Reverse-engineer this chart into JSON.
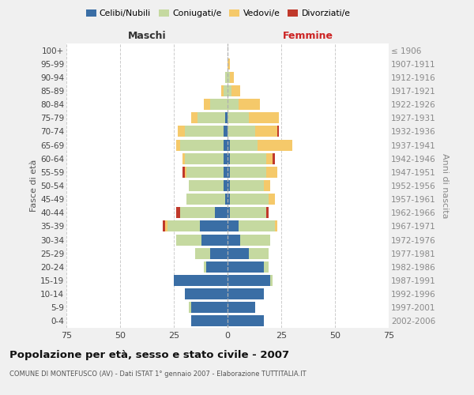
{
  "age_groups": [
    "0-4",
    "5-9",
    "10-14",
    "15-19",
    "20-24",
    "25-29",
    "30-34",
    "35-39",
    "40-44",
    "45-49",
    "50-54",
    "55-59",
    "60-64",
    "65-69",
    "70-74",
    "75-79",
    "80-84",
    "85-89",
    "90-94",
    "95-99",
    "100+"
  ],
  "birth_years": [
    "2002-2006",
    "1997-2001",
    "1992-1996",
    "1987-1991",
    "1982-1986",
    "1977-1981",
    "1972-1976",
    "1967-1971",
    "1962-1966",
    "1957-1961",
    "1952-1956",
    "1947-1951",
    "1942-1946",
    "1937-1941",
    "1932-1936",
    "1927-1931",
    "1922-1926",
    "1917-1921",
    "1912-1916",
    "1907-1911",
    "≤ 1906"
  ],
  "male": {
    "celibi": [
      17,
      17,
      20,
      25,
      10,
      8,
      12,
      13,
      6,
      1,
      2,
      2,
      2,
      2,
      2,
      1,
      0,
      0,
      0,
      0,
      0
    ],
    "coniugati": [
      0,
      1,
      0,
      0,
      1,
      7,
      12,
      15,
      16,
      18,
      16,
      17,
      18,
      20,
      18,
      13,
      8,
      2,
      1,
      0,
      0
    ],
    "vedovi": [
      0,
      0,
      0,
      0,
      0,
      0,
      0,
      1,
      0,
      0,
      0,
      1,
      1,
      2,
      3,
      3,
      3,
      1,
      0,
      0,
      0
    ],
    "divorziati": [
      0,
      0,
      0,
      0,
      0,
      0,
      0,
      1,
      2,
      0,
      0,
      1,
      0,
      0,
      0,
      0,
      0,
      0,
      0,
      0,
      0
    ]
  },
  "female": {
    "nubili": [
      17,
      13,
      17,
      20,
      17,
      10,
      6,
      5,
      1,
      1,
      1,
      1,
      1,
      1,
      0,
      0,
      0,
      0,
      0,
      0,
      0
    ],
    "coniugate": [
      0,
      0,
      0,
      1,
      2,
      9,
      14,
      17,
      17,
      18,
      16,
      17,
      17,
      13,
      13,
      10,
      5,
      2,
      1,
      0,
      0
    ],
    "vedove": [
      0,
      0,
      0,
      0,
      0,
      0,
      0,
      1,
      0,
      3,
      3,
      5,
      3,
      16,
      10,
      14,
      10,
      4,
      2,
      1,
      0
    ],
    "divorziate": [
      0,
      0,
      0,
      0,
      0,
      0,
      0,
      0,
      1,
      0,
      0,
      0,
      1,
      0,
      1,
      0,
      0,
      0,
      0,
      0,
      0
    ]
  },
  "colors": {
    "celibi_nubili": "#3a6ea5",
    "coniugati": "#c5d9a0",
    "vedovi": "#f5c96a",
    "divorziati": "#c0392b"
  },
  "xlim": 75,
  "title": "Popolazione per età, sesso e stato civile - 2007",
  "subtitle": "COMUNE DI MONTEFUSCO (AV) - Dati ISTAT 1° gennaio 2007 - Elaborazione TUTTITALIA.IT",
  "ylabel_left": "Fasce di età",
  "ylabel_right": "Anni di nascita",
  "xlabel_left": "Maschi",
  "xlabel_right": "Femmine",
  "bg_color": "#f0f0f0",
  "plot_bg_color": "#ffffff"
}
